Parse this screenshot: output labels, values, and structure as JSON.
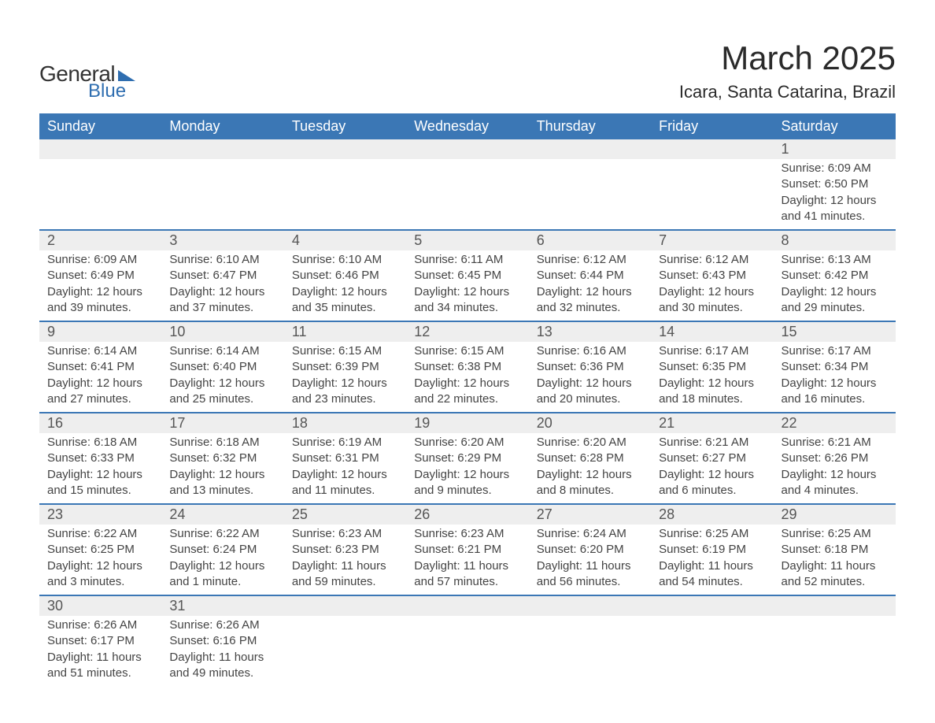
{
  "logo": {
    "word1": "General",
    "word2": "Blue"
  },
  "title": "March 2025",
  "location": "Icara, Santa Catarina, Brazil",
  "colors": {
    "header_bg": "#3b77b5",
    "header_text": "#ffffff",
    "daynum_bg": "#eeeeee",
    "row_border": "#3b77b5",
    "body_text": "#444444",
    "title_text": "#2a2a2a",
    "logo_accent": "#2f6eb0",
    "page_bg": "#ffffff"
  },
  "fonts": {
    "title_pt": 42,
    "location_pt": 22,
    "weekday_pt": 18,
    "daynum_pt": 18,
    "body_pt": 15,
    "family": "Arial"
  },
  "calendar": {
    "type": "table",
    "columns": [
      "Sunday",
      "Monday",
      "Tuesday",
      "Wednesday",
      "Thursday",
      "Friday",
      "Saturday"
    ],
    "weeks": [
      [
        null,
        null,
        null,
        null,
        null,
        null,
        {
          "n": "1",
          "sunrise": "6:09 AM",
          "sunset": "6:50 PM",
          "daylight": "12 hours and 41 minutes."
        }
      ],
      [
        {
          "n": "2",
          "sunrise": "6:09 AM",
          "sunset": "6:49 PM",
          "daylight": "12 hours and 39 minutes."
        },
        {
          "n": "3",
          "sunrise": "6:10 AM",
          "sunset": "6:47 PM",
          "daylight": "12 hours and 37 minutes."
        },
        {
          "n": "4",
          "sunrise": "6:10 AM",
          "sunset": "6:46 PM",
          "daylight": "12 hours and 35 minutes."
        },
        {
          "n": "5",
          "sunrise": "6:11 AM",
          "sunset": "6:45 PM",
          "daylight": "12 hours and 34 minutes."
        },
        {
          "n": "6",
          "sunrise": "6:12 AM",
          "sunset": "6:44 PM",
          "daylight": "12 hours and 32 minutes."
        },
        {
          "n": "7",
          "sunrise": "6:12 AM",
          "sunset": "6:43 PM",
          "daylight": "12 hours and 30 minutes."
        },
        {
          "n": "8",
          "sunrise": "6:13 AM",
          "sunset": "6:42 PM",
          "daylight": "12 hours and 29 minutes."
        }
      ],
      [
        {
          "n": "9",
          "sunrise": "6:14 AM",
          "sunset": "6:41 PM",
          "daylight": "12 hours and 27 minutes."
        },
        {
          "n": "10",
          "sunrise": "6:14 AM",
          "sunset": "6:40 PM",
          "daylight": "12 hours and 25 minutes."
        },
        {
          "n": "11",
          "sunrise": "6:15 AM",
          "sunset": "6:39 PM",
          "daylight": "12 hours and 23 minutes."
        },
        {
          "n": "12",
          "sunrise": "6:15 AM",
          "sunset": "6:38 PM",
          "daylight": "12 hours and 22 minutes."
        },
        {
          "n": "13",
          "sunrise": "6:16 AM",
          "sunset": "6:36 PM",
          "daylight": "12 hours and 20 minutes."
        },
        {
          "n": "14",
          "sunrise": "6:17 AM",
          "sunset": "6:35 PM",
          "daylight": "12 hours and 18 minutes."
        },
        {
          "n": "15",
          "sunrise": "6:17 AM",
          "sunset": "6:34 PM",
          "daylight": "12 hours and 16 minutes."
        }
      ],
      [
        {
          "n": "16",
          "sunrise": "6:18 AM",
          "sunset": "6:33 PM",
          "daylight": "12 hours and 15 minutes."
        },
        {
          "n": "17",
          "sunrise": "6:18 AM",
          "sunset": "6:32 PM",
          "daylight": "12 hours and 13 minutes."
        },
        {
          "n": "18",
          "sunrise": "6:19 AM",
          "sunset": "6:31 PM",
          "daylight": "12 hours and 11 minutes."
        },
        {
          "n": "19",
          "sunrise": "6:20 AM",
          "sunset": "6:29 PM",
          "daylight": "12 hours and 9 minutes."
        },
        {
          "n": "20",
          "sunrise": "6:20 AM",
          "sunset": "6:28 PM",
          "daylight": "12 hours and 8 minutes."
        },
        {
          "n": "21",
          "sunrise": "6:21 AM",
          "sunset": "6:27 PM",
          "daylight": "12 hours and 6 minutes."
        },
        {
          "n": "22",
          "sunrise": "6:21 AM",
          "sunset": "6:26 PM",
          "daylight": "12 hours and 4 minutes."
        }
      ],
      [
        {
          "n": "23",
          "sunrise": "6:22 AM",
          "sunset": "6:25 PM",
          "daylight": "12 hours and 3 minutes."
        },
        {
          "n": "24",
          "sunrise": "6:22 AM",
          "sunset": "6:24 PM",
          "daylight": "12 hours and 1 minute."
        },
        {
          "n": "25",
          "sunrise": "6:23 AM",
          "sunset": "6:23 PM",
          "daylight": "11 hours and 59 minutes."
        },
        {
          "n": "26",
          "sunrise": "6:23 AM",
          "sunset": "6:21 PM",
          "daylight": "11 hours and 57 minutes."
        },
        {
          "n": "27",
          "sunrise": "6:24 AM",
          "sunset": "6:20 PM",
          "daylight": "11 hours and 56 minutes."
        },
        {
          "n": "28",
          "sunrise": "6:25 AM",
          "sunset": "6:19 PM",
          "daylight": "11 hours and 54 minutes."
        },
        {
          "n": "29",
          "sunrise": "6:25 AM",
          "sunset": "6:18 PM",
          "daylight": "11 hours and 52 minutes."
        }
      ],
      [
        {
          "n": "30",
          "sunrise": "6:26 AM",
          "sunset": "6:17 PM",
          "daylight": "11 hours and 51 minutes."
        },
        {
          "n": "31",
          "sunrise": "6:26 AM",
          "sunset": "6:16 PM",
          "daylight": "11 hours and 49 minutes."
        },
        null,
        null,
        null,
        null,
        null
      ]
    ],
    "labels": {
      "sunrise": "Sunrise: ",
      "sunset": "Sunset: ",
      "daylight": "Daylight: "
    }
  }
}
